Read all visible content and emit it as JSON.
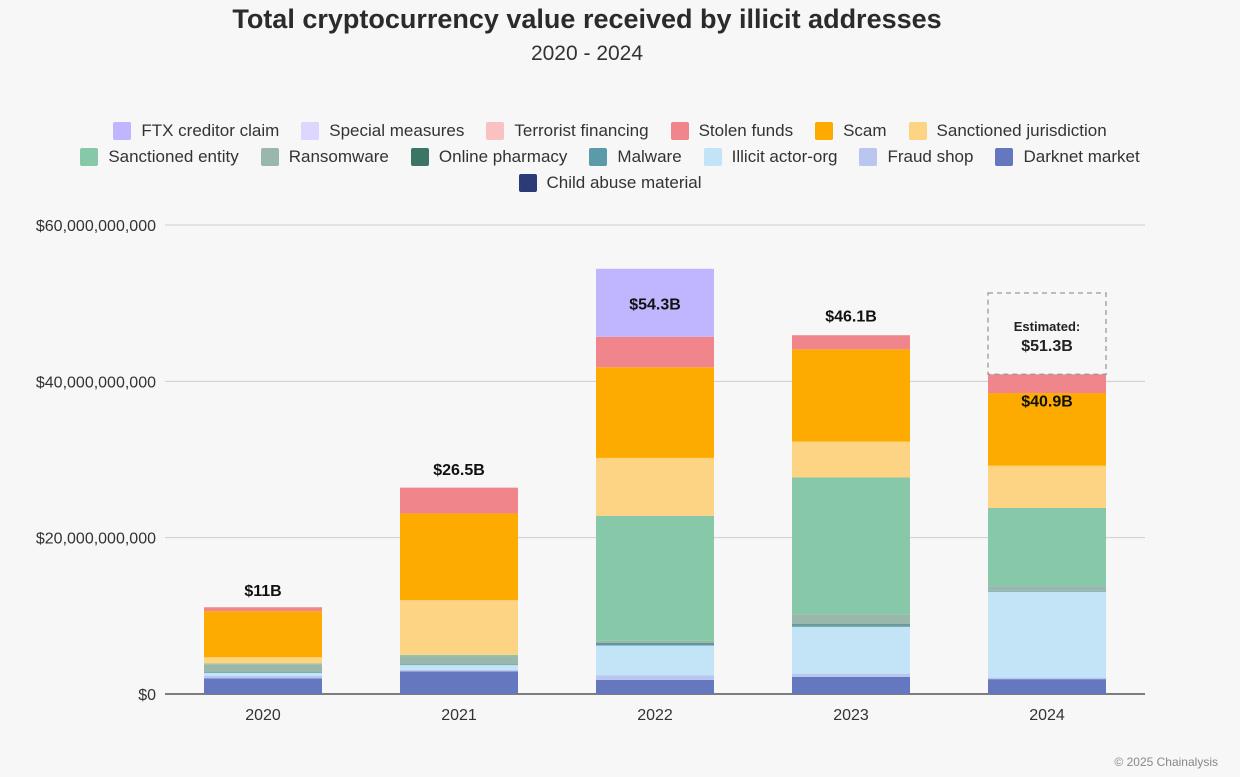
{
  "title": "Total cryptocurrency value received by illicit addresses",
  "subtitle": "2020 - 2024",
  "copyright": "© 2025 Chainalysis",
  "legend_rows": [
    [
      "FTX creditor claim",
      "Special measures",
      "Terrorist financing",
      "Stolen funds",
      "Scam",
      "Sanctioned jurisdiction"
    ],
    [
      "Sanctioned entity",
      "Ransomware",
      "Online pharmacy",
      "Malware",
      "Illicit actor-org",
      "Fraud shop",
      "Darknet market"
    ],
    [
      "Child abuse material"
    ]
  ],
  "colors": {
    "FTX creditor claim": "#c0b6ff",
    "Special measures": "#ddd6ff",
    "Terrorist financing": "#f9c1c1",
    "Stolen funds": "#f0858b",
    "Scam": "#fdab00",
    "Sanctioned jurisdiction": "#fdd483",
    "Sanctioned entity": "#86c8a7",
    "Ransomware": "#99b7ab",
    "Online pharmacy": "#3c7565",
    "Malware": "#5a9aa9",
    "Illicit actor-org": "#c3e4f7",
    "Fraud shop": "#b8c6f0",
    "Darknet market": "#6477bf",
    "Child abuse material": "#2c3a78"
  },
  "chart_data": {
    "type": "bar",
    "stacked": true,
    "categories": [
      "2020",
      "2021",
      "2022",
      "2023",
      "2024"
    ],
    "ylim": [
      0,
      60000000000
    ],
    "yticks": [
      "$0",
      "$20,000,000,000",
      "$40,000,000,000",
      "$60,000,000,000"
    ],
    "ytick_values": [
      0,
      20000000000,
      40000000000,
      60000000000
    ],
    "grid": true,
    "legend_position": "top",
    "series": [
      {
        "name": "Child abuse material",
        "values": [
          0,
          0,
          0,
          0,
          0
        ]
      },
      {
        "name": "Darknet market",
        "values": [
          2000000000.0,
          2900000000.0,
          1800000000.0,
          2200000000.0,
          1900000000.0
        ]
      },
      {
        "name": "Fraud shop",
        "values": [
          300000000.0,
          200000000.0,
          600000000.0,
          400000000.0,
          200000000.0
        ]
      },
      {
        "name": "Illicit actor-org",
        "values": [
          400000000.0,
          600000000.0,
          3800000000.0,
          6000000000.0,
          11000000000.0
        ]
      },
      {
        "name": "Malware",
        "values": [
          100000000.0,
          100000000.0,
          200000000.0,
          200000000.0,
          100000000.0
        ]
      },
      {
        "name": "Online pharmacy",
        "values": [
          0,
          0,
          100000000.0,
          100000000.0,
          0
        ]
      },
      {
        "name": "Ransomware",
        "values": [
          1000000000.0,
          1000000000.0,
          300000000.0,
          1300000000.0,
          600000000.0
        ]
      },
      {
        "name": "Sanctioned entity",
        "values": [
          100000000.0,
          200000000.0,
          16000000000.0,
          17500000000.0,
          10000000000.0
        ]
      },
      {
        "name": "Sanctioned jurisdiction",
        "values": [
          800000000.0,
          7000000000.0,
          7400000000.0,
          4600000000.0,
          5400000000.0
        ]
      },
      {
        "name": "Scam",
        "values": [
          5900000000.0,
          11100000000.0,
          11600000000.0,
          11800000000.0,
          9300000000.0
        ]
      },
      {
        "name": "Stolen funds",
        "values": [
          500000000.0,
          3300000000.0,
          3900000000.0,
          1800000000.0,
          2400000000.0
        ]
      },
      {
        "name": "Terrorist financing",
        "values": [
          0,
          0,
          0,
          0,
          0
        ]
      },
      {
        "name": "Special measures",
        "values": [
          0,
          0,
          0,
          0,
          0
        ]
      },
      {
        "name": "FTX creditor claim",
        "values": [
          0,
          0,
          8700000000.0,
          0,
          0
        ]
      }
    ],
    "totals": [
      11000000000.0,
      26500000000.0,
      54300000000.0,
      46100000000.0,
      40900000000.0
    ],
    "total_labels": [
      "$11B",
      "$26.5B",
      "$54.3B",
      "$46.1B",
      "$40.9B"
    ],
    "estimate": {
      "category": "2024",
      "label_line1": "Estimated:",
      "label_line2": "$51.3B",
      "value": 51300000000.0
    }
  }
}
